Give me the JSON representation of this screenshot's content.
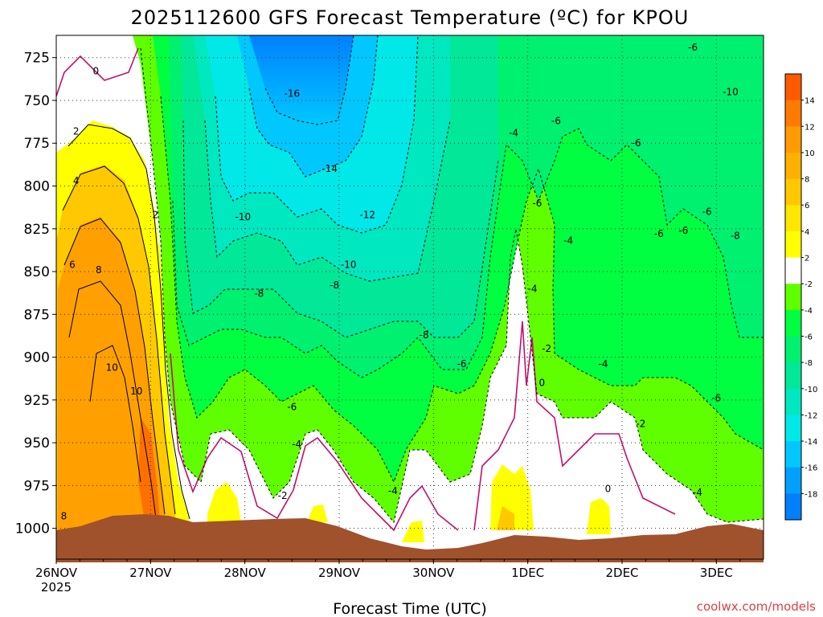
{
  "chart_data": {
    "type": "heatmap",
    "title": "2025112600 GFS Forecast Temperature (ºC) for KPOU",
    "xlabel": "Forecast Time (UTC)",
    "credit": "coolwx.com/models",
    "x_ticks": [
      "26NOV",
      "27NOV",
      "28NOV",
      "29NOV",
      "30NOV",
      "1DEC",
      "2DEC",
      "3DEC"
    ],
    "x_year": "2025",
    "x_range_days": [
      0,
      7.5
    ],
    "y_ticks": [
      "725",
      "750",
      "775",
      "800",
      "825",
      "850",
      "875",
      "900",
      "925",
      "950",
      "975",
      "1000"
    ],
    "y_range": [
      712,
      1018
    ],
    "grid": true,
    "colorbar": {
      "placement": "right",
      "labels": [
        "14",
        "12",
        "10",
        "8",
        "6",
        "4",
        "2",
        "-2",
        "-4",
        "-6",
        "-8",
        "-10",
        "-12",
        "-14",
        "-16",
        "-18"
      ],
      "colors": [
        "#ff5a00",
        "#ff7a00",
        "#ff9a00",
        "#ffb000",
        "#ffc800",
        "#ffe600",
        "#ffff00",
        "#ffffff",
        "#60ff00",
        "#00ff40",
        "#00f070",
        "#00e898",
        "#00e8c0",
        "#00e8e8",
        "#00c8ff",
        "#00a0ff",
        "#0080ff"
      ]
    },
    "contour_labels": [
      {
        "text": "0",
        "t": 0.42,
        "p": 733
      },
      {
        "text": "2",
        "t": 0.21,
        "p": 768
      },
      {
        "text": "4",
        "t": 0.21,
        "p": 797
      },
      {
        "text": "2",
        "t": 1.05,
        "p": 817
      },
      {
        "text": "6",
        "t": 0.17,
        "p": 846
      },
      {
        "text": "8",
        "t": 0.45,
        "p": 849
      },
      {
        "text": "10",
        "t": 0.59,
        "p": 906
      },
      {
        "text": "10",
        "t": 0.85,
        "p": 920
      },
      {
        "text": "8",
        "t": 0.08,
        "p": 993
      },
      {
        "text": "-16",
        "t": 2.5,
        "p": 746
      },
      {
        "text": "-14",
        "t": 2.9,
        "p": 790
      },
      {
        "text": "-12",
        "t": 3.3,
        "p": 817
      },
      {
        "text": "-10",
        "t": 1.98,
        "p": 818
      },
      {
        "text": "-10",
        "t": 3.1,
        "p": 846
      },
      {
        "text": "-8",
        "t": 2.15,
        "p": 863
      },
      {
        "text": "-8",
        "t": 2.95,
        "p": 858
      },
      {
        "text": "-8",
        "t": 3.9,
        "p": 887
      },
      {
        "text": "-6",
        "t": 2.5,
        "p": 929
      },
      {
        "text": "-6",
        "t": 4.3,
        "p": 904
      },
      {
        "text": "-4",
        "t": 2.55,
        "p": 951
      },
      {
        "text": "-4",
        "t": 3.57,
        "p": 978
      },
      {
        "text": "-2",
        "t": 2.4,
        "p": 981
      },
      {
        "text": "-4",
        "t": 4.85,
        "p": 769
      },
      {
        "text": "-6",
        "t": 5.3,
        "p": 762
      },
      {
        "text": "-6",
        "t": 5.1,
        "p": 810
      },
      {
        "text": "-4",
        "t": 5.43,
        "p": 832
      },
      {
        "text": "-4",
        "t": 5.05,
        "p": 860
      },
      {
        "text": "-2",
        "t": 5.2,
        "p": 895
      },
      {
        "text": "0",
        "t": 5.15,
        "p": 915
      },
      {
        "text": "-6",
        "t": 6.15,
        "p": 775
      },
      {
        "text": "-6",
        "t": 6.39,
        "p": 828
      },
      {
        "text": "-6",
        "t": 6.65,
        "p": 826
      },
      {
        "text": "-6",
        "t": 6.9,
        "p": 815
      },
      {
        "text": "-6",
        "t": 6.75,
        "p": 719
      },
      {
        "text": "-10",
        "t": 7.15,
        "p": 745
      },
      {
        "text": "-8",
        "t": 7.2,
        "p": 829
      },
      {
        "text": "-4",
        "t": 5.8,
        "p": 904
      },
      {
        "text": "-2",
        "t": 6.2,
        "p": 939
      },
      {
        "text": "0",
        "t": 5.85,
        "p": 977
      },
      {
        "text": "-6",
        "t": 7.0,
        "p": 924
      },
      {
        "text": "-4",
        "t": 6.8,
        "p": 979
      }
    ]
  }
}
